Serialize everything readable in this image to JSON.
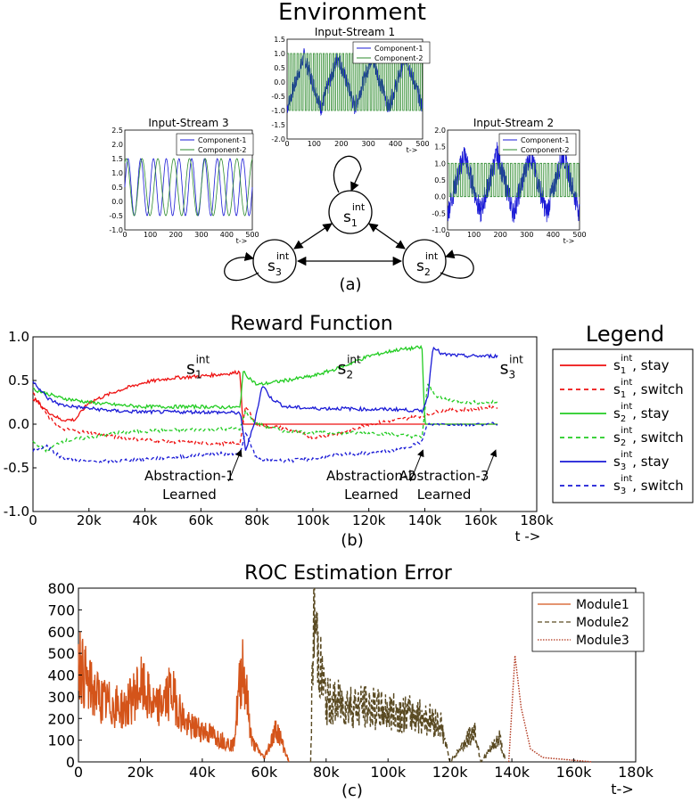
{
  "figure": {
    "env_title": "Environment",
    "panel_a": "(a)",
    "panel_b": "(b)",
    "panel_c": "(c)",
    "states": [
      {
        "base": "s",
        "sub": "1",
        "sup": "int"
      },
      {
        "base": "s",
        "sub": "2",
        "sup": "int"
      },
      {
        "base": "s",
        "sub": "3",
        "sup": "int"
      }
    ],
    "colors": {
      "red": "#ee1111",
      "green": "#22cc22",
      "blue": "#1a1ad6",
      "orange": "#d4541a",
      "olive": "#5a4a22",
      "dark_green": "#2e8b2e"
    }
  },
  "chart_data": [
    {
      "id": "input-stream-1",
      "type": "line",
      "title": "Input-Stream 1",
      "xlabel": "t->",
      "xlim": [
        0,
        500
      ],
      "ylim": [
        -2.0,
        1.5
      ],
      "xticks": [
        "0",
        "100",
        "200",
        "300",
        "400",
        "500"
      ],
      "yticks": [
        "1.5",
        "1.0",
        "0.5",
        "0.0",
        "-0.5",
        "-1.0",
        "-1.5",
        "-2.0"
      ],
      "series": [
        {
          "name": "Component-1",
          "color": "#1a1ad6",
          "pattern": "triangle wave amplitude 1.0 period 125 plus noise"
        },
        {
          "name": "Component-2",
          "color": "#2e8b2e",
          "pattern": "square wave amplitude 1.0 period 12"
        }
      ]
    },
    {
      "id": "input-stream-3",
      "type": "line",
      "title": "Input-Stream 3",
      "xlabel": "t->",
      "xlim": [
        0,
        500
      ],
      "ylim": [
        -1.0,
        2.5
      ],
      "xticks": [
        "0",
        "100",
        "200",
        "300",
        "400",
        "500"
      ],
      "yticks": [
        "2.5",
        "2.0",
        "1.5",
        "1.0",
        "0.5",
        "0.0",
        "-0.5",
        "-1.0"
      ],
      "series": [
        {
          "name": "Component-1",
          "color": "#1a1ad6",
          "pattern": "sine amplitude 1.0 offset 0.5 period 50"
        },
        {
          "name": "Component-2",
          "color": "#2e8b2e",
          "pattern": "sine amplitude 1.0 offset 0.5 period 62"
        }
      ]
    },
    {
      "id": "input-stream-2",
      "type": "line",
      "title": "Input-Stream 2",
      "xlabel": "t->",
      "xlim": [
        0,
        500
      ],
      "ylim": [
        -1.0,
        2.0
      ],
      "xticks": [
        "0",
        "100",
        "200",
        "300",
        "400",
        "500"
      ],
      "yticks": [
        "2.0",
        "1.5",
        "1.0",
        "0.5",
        "0.0",
        "-0.5",
        "-1.0"
      ],
      "series": [
        {
          "name": "Component-1",
          "color": "#1a1ad6",
          "pattern": "triangle wave amplitude 1.0 period 125 plus noise"
        },
        {
          "name": "Component-2",
          "color": "#2e8b2e",
          "pattern": "square wave 0 to 1 period 14"
        }
      ]
    },
    {
      "id": "reward-function",
      "type": "line",
      "title": "Reward Function",
      "xlabel": "t ->",
      "xlim": [
        0,
        180000
      ],
      "ylim": [
        -1.0,
        1.0
      ],
      "xticks": [
        "0",
        "20k",
        "40k",
        "60k",
        "80k",
        "100k",
        "120k",
        "140k",
        "160k",
        "180k"
      ],
      "yticks": [
        "1.0",
        "0.5",
        "0.0",
        "-0.5",
        "-1.0"
      ],
      "legend_title": "Legend",
      "series": [
        {
          "name": "stay",
          "state": "1",
          "style": "solid",
          "color": "#ee1111",
          "points": [
            [
              0,
              0.3
            ],
            [
              5000,
              0.15
            ],
            [
              10000,
              0.05
            ],
            [
              15000,
              0.05
            ],
            [
              20000,
              0.25
            ],
            [
              30000,
              0.38
            ],
            [
              40000,
              0.48
            ],
            [
              50000,
              0.53
            ],
            [
              60000,
              0.55
            ],
            [
              70000,
              0.58
            ],
            [
              74000,
              0.6
            ],
            [
              75000,
              0.0
            ],
            [
              166000,
              0.0
            ]
          ]
        },
        {
          "name": "switch",
          "state": "1",
          "style": "dashed",
          "color": "#ee1111",
          "points": [
            [
              0,
              0.35
            ],
            [
              5000,
              0.1
            ],
            [
              10000,
              -0.05
            ],
            [
              20000,
              -0.1
            ],
            [
              30000,
              -0.15
            ],
            [
              40000,
              -0.18
            ],
            [
              50000,
              -0.2
            ],
            [
              60000,
              -0.22
            ],
            [
              70000,
              -0.22
            ],
            [
              74000,
              -0.22
            ],
            [
              76000,
              0.2
            ],
            [
              80000,
              0.0
            ],
            [
              90000,
              -0.05
            ],
            [
              100000,
              -0.15
            ],
            [
              110000,
              -0.1
            ],
            [
              120000,
              0.0
            ],
            [
              130000,
              0.05
            ],
            [
              140000,
              0.1
            ],
            [
              145000,
              0.15
            ],
            [
              160000,
              0.18
            ],
            [
              166000,
              0.2
            ]
          ]
        },
        {
          "name": "stay",
          "state": "2",
          "style": "solid",
          "color": "#22cc22",
          "points": [
            [
              0,
              0.4
            ],
            [
              5000,
              0.35
            ],
            [
              10000,
              0.3
            ],
            [
              20000,
              0.25
            ],
            [
              30000,
              0.22
            ],
            [
              40000,
              0.2
            ],
            [
              50000,
              0.2
            ],
            [
              60000,
              0.2
            ],
            [
              74000,
              0.19
            ],
            [
              75000,
              0.6
            ],
            [
              80000,
              0.45
            ],
            [
              90000,
              0.5
            ],
            [
              100000,
              0.55
            ],
            [
              110000,
              0.65
            ],
            [
              120000,
              0.78
            ],
            [
              130000,
              0.85
            ],
            [
              139000,
              0.88
            ],
            [
              140000,
              0.0
            ],
            [
              166000,
              0.0
            ]
          ]
        },
        {
          "name": "switch",
          "state": "2",
          "style": "dashed",
          "color": "#22cc22",
          "points": [
            [
              0,
              -0.2
            ],
            [
              5000,
              -0.3
            ],
            [
              10000,
              -0.2
            ],
            [
              20000,
              -0.15
            ],
            [
              30000,
              -0.1
            ],
            [
              40000,
              -0.08
            ],
            [
              50000,
              -0.07
            ],
            [
              60000,
              -0.06
            ],
            [
              74000,
              -0.05
            ],
            [
              76000,
              0.15
            ],
            [
              80000,
              0.0
            ],
            [
              90000,
              -0.08
            ],
            [
              100000,
              -0.1
            ],
            [
              110000,
              -0.1
            ],
            [
              120000,
              -0.1
            ],
            [
              130000,
              -0.12
            ],
            [
              139000,
              -0.15
            ],
            [
              141000,
              0.45
            ],
            [
              145000,
              0.3
            ],
            [
              155000,
              0.25
            ],
            [
              166000,
              0.25
            ]
          ]
        },
        {
          "name": "stay",
          "state": "3",
          "style": "solid",
          "color": "#1a1ad6",
          "points": [
            [
              0,
              0.5
            ],
            [
              5000,
              0.3
            ],
            [
              10000,
              0.22
            ],
            [
              20000,
              0.18
            ],
            [
              30000,
              0.15
            ],
            [
              40000,
              0.14
            ],
            [
              50000,
              0.14
            ],
            [
              60000,
              0.14
            ],
            [
              74000,
              0.13
            ],
            [
              76000,
              -0.3
            ],
            [
              79000,
              0.0
            ],
            [
              82000,
              0.45
            ],
            [
              85000,
              0.3
            ],
            [
              90000,
              0.2
            ],
            [
              100000,
              0.18
            ],
            [
              110000,
              0.18
            ],
            [
              120000,
              0.17
            ],
            [
              130000,
              0.17
            ],
            [
              139000,
              0.15
            ],
            [
              141000,
              0.3
            ],
            [
              143000,
              0.9
            ],
            [
              146000,
              0.8
            ],
            [
              155000,
              0.78
            ],
            [
              166000,
              0.78
            ]
          ]
        },
        {
          "name": "switch",
          "state": "3",
          "style": "dashed",
          "color": "#1a1ad6",
          "points": [
            [
              0,
              -0.3
            ],
            [
              5000,
              -0.25
            ],
            [
              10000,
              -0.38
            ],
            [
              20000,
              -0.43
            ],
            [
              30000,
              -0.42
            ],
            [
              40000,
              -0.4
            ],
            [
              50000,
              -0.38
            ],
            [
              60000,
              -0.35
            ],
            [
              74000,
              -0.33
            ],
            [
              76000,
              -0.1
            ],
            [
              80000,
              -0.4
            ],
            [
              90000,
              -0.42
            ],
            [
              100000,
              -0.4
            ],
            [
              110000,
              -0.35
            ],
            [
              120000,
              -0.33
            ],
            [
              130000,
              -0.3
            ],
            [
              139000,
              -0.2
            ],
            [
              141000,
              0.0
            ],
            [
              166000,
              0.0
            ]
          ]
        }
      ],
      "annotations": [
        {
          "line1": "Abstraction-1",
          "line2": "Learned",
          "at": 75000
        },
        {
          "line1": "Abstraction-2",
          "line2": "Learned",
          "at": 140000
        },
        {
          "line1": "Abstraction-3",
          "line2": "Learned",
          "at": 166000
        }
      ],
      "state_labels": [
        {
          "state": "1",
          "at": [
            58000,
            0.72
          ]
        },
        {
          "state": "2",
          "at": [
            112000,
            0.72
          ]
        },
        {
          "state": "3",
          "at": [
            170000,
            0.72
          ]
        }
      ]
    },
    {
      "id": "roc-estimation-error",
      "type": "line",
      "title": "ROC Estimation Error",
      "xlabel": "t->",
      "xlim": [
        0,
        180000
      ],
      "ylim": [
        0,
        800
      ],
      "xticks": [
        "0",
        "20k",
        "40k",
        "60k",
        "80k",
        "100k",
        "120k",
        "140k",
        "160k",
        "180k"
      ],
      "yticks": [
        "800",
        "700",
        "600",
        "500",
        "400",
        "300",
        "200",
        "100",
        "0"
      ],
      "series": [
        {
          "name": "Module1",
          "color": "#d4541a",
          "style": "solid",
          "range": [
            0,
            75000
          ],
          "peaks": [
            [
              0,
              520
            ],
            [
              3000,
              380
            ],
            [
              8000,
              300
            ],
            [
              15000,
              260
            ],
            [
              20000,
              380
            ],
            [
              25000,
              260
            ],
            [
              30000,
              350
            ],
            [
              35000,
              180
            ],
            [
              40000,
              160
            ],
            [
              45000,
              120
            ],
            [
              50000,
              80
            ],
            [
              53000,
              510
            ],
            [
              56000,
              100
            ],
            [
              60000,
              20
            ],
            [
              64000,
              170
            ],
            [
              68000,
              0
            ]
          ]
        },
        {
          "name": "Module2",
          "color": "#5a4a22",
          "style": "dashed",
          "range": [
            75000,
            140000
          ],
          "peaks": [
            [
              75000,
              0
            ],
            [
              76000,
              750
            ],
            [
              78000,
              480
            ],
            [
              80000,
              300
            ],
            [
              90000,
              280
            ],
            [
              100000,
              250
            ],
            [
              110000,
              230
            ],
            [
              117000,
              190
            ],
            [
              120000,
              0
            ],
            [
              128000,
              160
            ],
            [
              130000,
              0
            ],
            [
              136000,
              120
            ],
            [
              138000,
              0
            ]
          ]
        },
        {
          "name": "Module3",
          "color": "#b0341a",
          "style": "dotted",
          "range": [
            140000,
            166000
          ],
          "peaks": [
            [
              139000,
              0
            ],
            [
              141000,
              490
            ],
            [
              143000,
              250
            ],
            [
              146000,
              60
            ],
            [
              150000,
              20
            ],
            [
              166000,
              0
            ]
          ]
        }
      ]
    }
  ]
}
